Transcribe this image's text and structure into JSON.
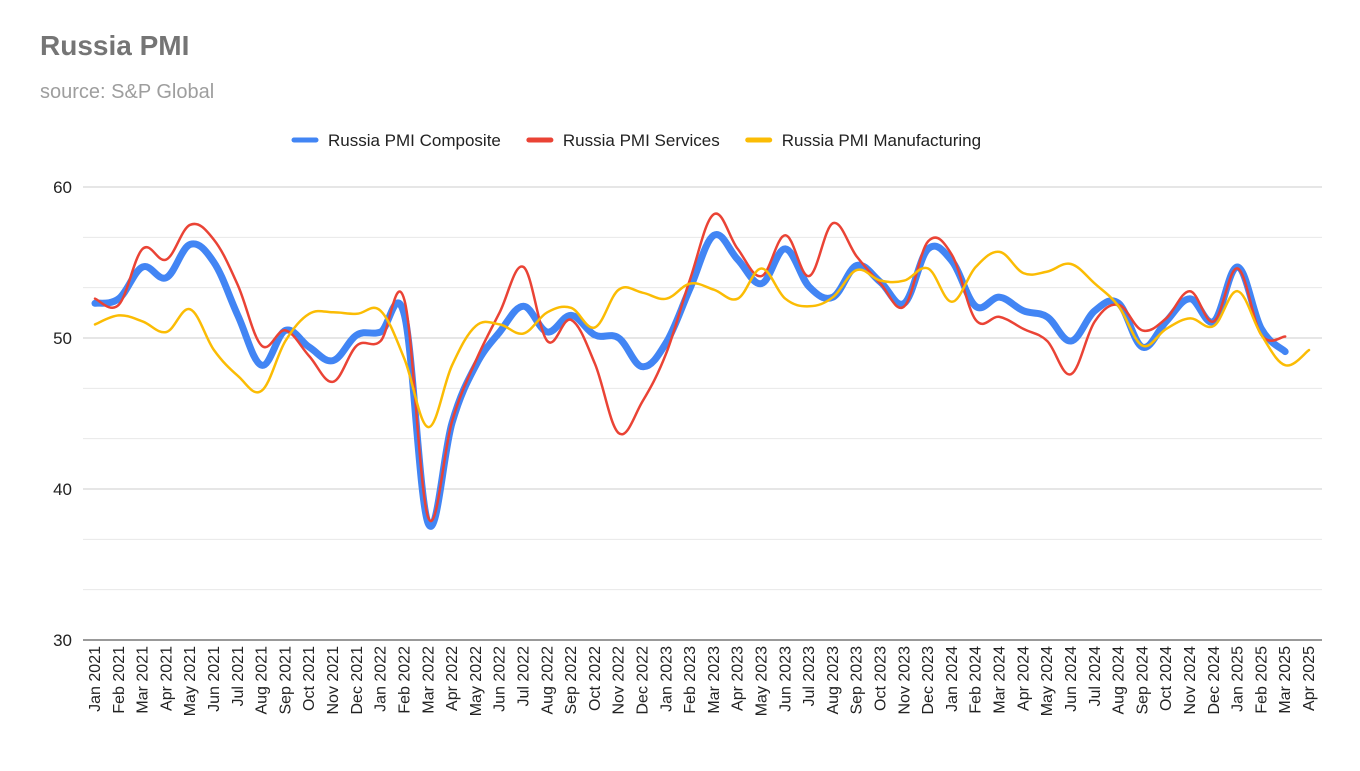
{
  "chart_data": {
    "type": "line",
    "title": "Russia PMI",
    "subtitle": "source: S&P Global",
    "legend_position": "top",
    "grid": true,
    "ylim": [
      30,
      60
    ],
    "yticks": [
      30,
      40,
      50,
      60
    ],
    "categories": [
      "Jan 2021",
      "Feb 2021",
      "Mar 2021",
      "Apr 2021",
      "May 2021",
      "Jun 2021",
      "Jul 2021",
      "Aug 2021",
      "Sep 2021",
      "Oct 2021",
      "Nov 2021",
      "Dec 2021",
      "Jan 2022",
      "Feb 2022",
      "Mar 2022",
      "Apr 2022",
      "May 2022",
      "Jun 2022",
      "Jul 2022",
      "Aug 2022",
      "Sep 2022",
      "Oct 2022",
      "Nov 2022",
      "Dec 2022",
      "Jan 2023",
      "Feb 2023",
      "Mar 2023",
      "Apr 2023",
      "May 2023",
      "Jun 2023",
      "Jul 2023",
      "Aug 2023",
      "Sep 2023",
      "Oct 2023",
      "Nov 2023",
      "Dec 2023",
      "Jan 2024",
      "Feb 2024",
      "Mar 2024",
      "Apr 2024",
      "May 2024",
      "Jun 2024",
      "Jul 2024",
      "Aug 2024",
      "Sep 2024",
      "Oct 2024",
      "Nov 2024",
      "Dec 2024",
      "Jan 2025",
      "Feb 2025",
      "Mar 2025",
      "Apr 2025"
    ],
    "series": [
      {
        "name": "Russia PMI Composite",
        "color": "#4285f4",
        "values": [
          52.3,
          52.6,
          54.7,
          54.0,
          56.2,
          55.0,
          51.5,
          48.2,
          50.5,
          49.4,
          48.5,
          50.2,
          50.4,
          51.5,
          37.7,
          44.4,
          48.2,
          50.4,
          52.1,
          50.4,
          51.5,
          50.2,
          50.0,
          48.1,
          49.7,
          53.3,
          56.8,
          55.2,
          53.6,
          55.9,
          53.4,
          52.7,
          54.8,
          53.7,
          52.3,
          55.9,
          55.1,
          52.1,
          52.7,
          51.8,
          51.4,
          49.8,
          51.8,
          52.3,
          49.4,
          51.1,
          52.6,
          51.1,
          54.7,
          50.6,
          49.1,
          null
        ]
      },
      {
        "name": "Russia PMI Services",
        "color": "#ea4335",
        "values": [
          52.6,
          52.2,
          55.9,
          55.2,
          57.5,
          56.5,
          53.5,
          49.5,
          50.5,
          48.8,
          47.1,
          49.5,
          49.8,
          52.5,
          38.1,
          44.5,
          48.5,
          51.7,
          54.7,
          49.8,
          51.2,
          48.3,
          43.7,
          45.8,
          49.0,
          53.9,
          58.2,
          55.9,
          54.1,
          56.8,
          54.1,
          57.6,
          55.4,
          53.6,
          52.1,
          56.4,
          55.5,
          51.2,
          51.4,
          50.6,
          49.8,
          47.6,
          51.1,
          52.2,
          50.5,
          51.3,
          53.1,
          51.1,
          54.6,
          50.2,
          50.1,
          null
        ]
      },
      {
        "name": "Russia PMI Manufacturing",
        "color": "#fbbc04",
        "values": [
          50.9,
          51.5,
          51.1,
          50.4,
          51.9,
          49.2,
          47.5,
          46.5,
          49.8,
          51.6,
          51.7,
          51.6,
          51.8,
          48.6,
          44.1,
          48.2,
          50.8,
          50.9,
          50.3,
          51.7,
          52.0,
          50.7,
          53.2,
          53.0,
          52.6,
          53.6,
          53.2,
          52.6,
          54.6,
          52.6,
          52.1,
          52.7,
          54.5,
          53.8,
          53.8,
          54.6,
          52.4,
          54.7,
          55.7,
          54.3,
          54.4,
          54.9,
          53.6,
          52.1,
          49.5,
          50.6,
          51.3,
          50.8,
          53.1,
          50.2,
          48.2,
          49.2
        ]
      }
    ]
  }
}
